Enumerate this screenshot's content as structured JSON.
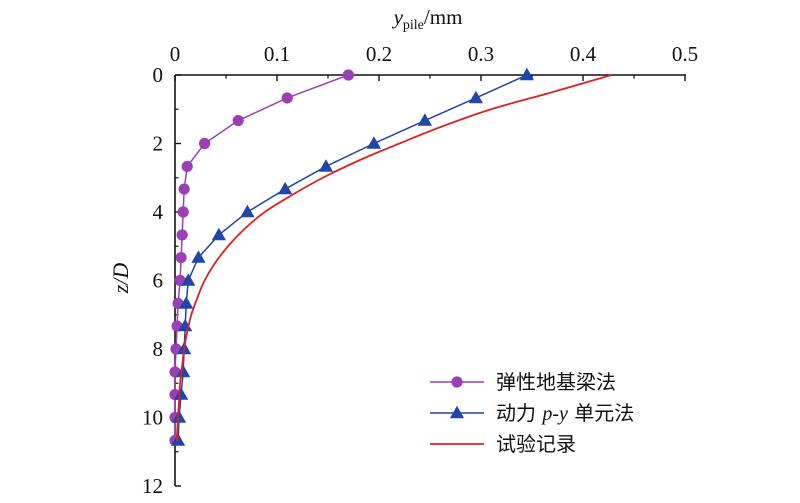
{
  "chart_data": {
    "type": "line",
    "x_axis": {
      "label": "y",
      "label_subscript": "pile",
      "label_unit": "/mm",
      "position": "top",
      "range": [
        0,
        0.5
      ],
      "ticks": [
        0,
        0.1,
        0.2,
        0.3,
        0.4,
        0.5
      ],
      "tick_labels": [
        "0",
        "0.1",
        "0.2",
        "0.3",
        "0.4",
        "0.5"
      ]
    },
    "y_axis": {
      "label": "z/D",
      "inverted": true,
      "range": [
        0,
        12
      ],
      "ticks": [
        0,
        2,
        4,
        6,
        8,
        10,
        12
      ],
      "tick_labels": [
        "0",
        "2",
        "4",
        "6",
        "8",
        "10",
        "12"
      ]
    },
    "grid": false,
    "legend_position": "bottom-right",
    "series": [
      {
        "name": "弹性地基梁法",
        "color": "#9B3FB5",
        "marker": "circle",
        "points": [
          [
            0.17,
            0.0
          ],
          [
            0.11,
            0.67
          ],
          [
            0.062,
            1.33
          ],
          [
            0.029,
            2.0
          ],
          [
            0.012,
            2.67
          ],
          [
            0.009,
            3.33
          ],
          [
            0.008,
            4.0
          ],
          [
            0.007,
            4.67
          ],
          [
            0.006,
            5.33
          ],
          [
            0.005,
            6.0
          ],
          [
            0.003,
            6.67
          ],
          [
            0.002,
            7.33
          ],
          [
            0.001,
            8.0
          ],
          [
            0.0,
            8.67
          ],
          [
            0.0,
            9.33
          ],
          [
            0.0,
            10.0
          ],
          [
            0.0,
            10.67
          ]
        ]
      },
      {
        "name_parts": [
          "动力 ",
          "p-y",
          " 单元法"
        ],
        "color": "#2245A8",
        "marker": "triangle",
        "points": [
          [
            0.345,
            0.0
          ],
          [
            0.295,
            0.67
          ],
          [
            0.245,
            1.33
          ],
          [
            0.195,
            2.0
          ],
          [
            0.148,
            2.67
          ],
          [
            0.108,
            3.33
          ],
          [
            0.071,
            4.0
          ],
          [
            0.043,
            4.67
          ],
          [
            0.023,
            5.33
          ],
          [
            0.013,
            6.0
          ],
          [
            0.011,
            6.67
          ],
          [
            0.01,
            7.33
          ],
          [
            0.009,
            8.0
          ],
          [
            0.008,
            8.67
          ],
          [
            0.006,
            9.33
          ],
          [
            0.004,
            10.0
          ],
          [
            0.003,
            10.67
          ]
        ]
      },
      {
        "name": "试验记录",
        "color": "#E02020",
        "marker": "none",
        "points": [
          [
            0.428,
            0.0
          ],
          [
            0.37,
            0.5
          ],
          [
            0.31,
            1.0
          ],
          [
            0.262,
            1.5
          ],
          [
            0.22,
            2.0
          ],
          [
            0.18,
            2.5
          ],
          [
            0.145,
            3.0
          ],
          [
            0.115,
            3.5
          ],
          [
            0.088,
            4.0
          ],
          [
            0.068,
            4.5
          ],
          [
            0.052,
            5.0
          ],
          [
            0.039,
            5.5
          ],
          [
            0.029,
            6.0
          ],
          [
            0.022,
            6.5
          ],
          [
            0.016,
            7.0
          ],
          [
            0.012,
            7.5
          ],
          [
            0.009,
            8.0
          ],
          [
            0.007,
            8.5
          ],
          [
            0.005,
            9.0
          ],
          [
            0.004,
            9.5
          ],
          [
            0.003,
            10.0
          ],
          [
            0.002,
            10.5
          ],
          [
            0.002,
            10.7
          ]
        ]
      }
    ]
  }
}
